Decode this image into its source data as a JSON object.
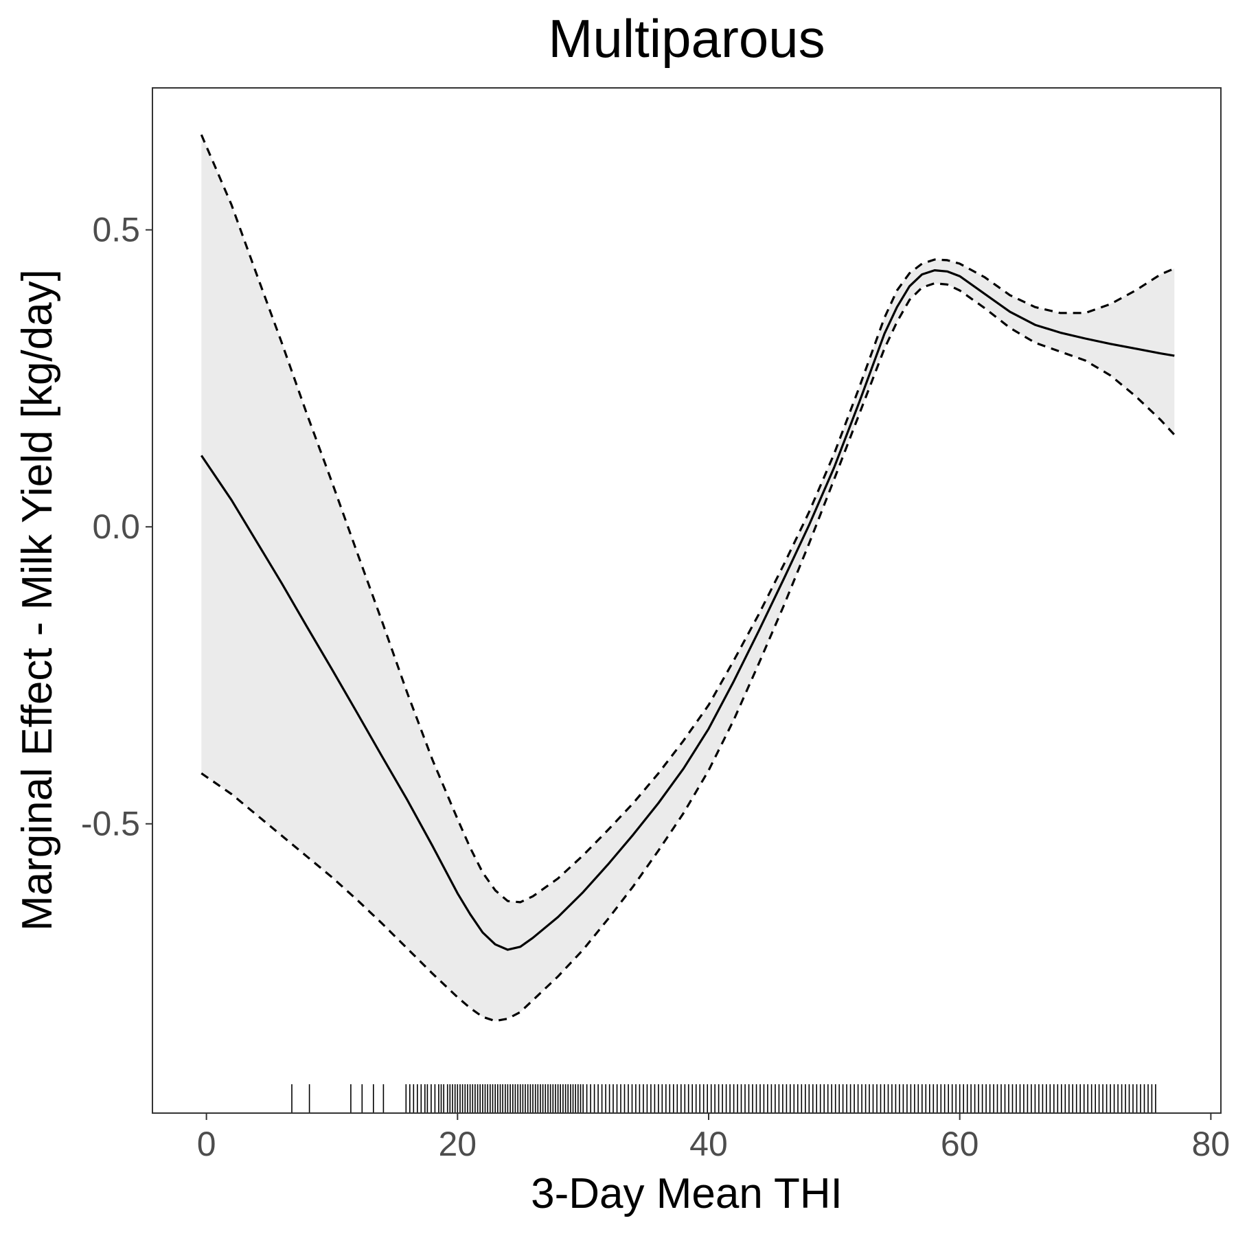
{
  "chart_data": {
    "type": "line",
    "title": "Multiparous",
    "xlabel": "3-Day Mean THI",
    "ylabel": "Marginal Effect - Milk Yield [kg/day]",
    "xlim": [
      -4.3,
      80.8
    ],
    "ylim": [
      -0.987,
      0.739
    ],
    "xticks": [
      0,
      20,
      40,
      60,
      80
    ],
    "xtick_labels": [
      "0",
      "20",
      "40",
      "60",
      "80"
    ],
    "yticks": [
      -0.5,
      0.0,
      0.5
    ],
    "ytick_labels": [
      "-0.5",
      "0.0",
      "0.5"
    ],
    "grid": false,
    "legend": "none",
    "x": [
      -0.4,
      2,
      4,
      6,
      8,
      10,
      12,
      14,
      16,
      18,
      20,
      21,
      22,
      23,
      24,
      25,
      26,
      28,
      30,
      32,
      34,
      36,
      38,
      40,
      42,
      44,
      46,
      48,
      50,
      52,
      54,
      55,
      56,
      57,
      58,
      59,
      60,
      62,
      64,
      66,
      68,
      70,
      72,
      74,
      76,
      77.1
    ],
    "series": [
      {
        "role": "estimate",
        "style": "solid",
        "values": [
          0.12,
          0.045,
          -0.025,
          -0.095,
          -0.168,
          -0.24,
          -0.313,
          -0.387,
          -0.46,
          -0.537,
          -0.617,
          -0.652,
          -0.683,
          -0.703,
          -0.712,
          -0.707,
          -0.692,
          -0.657,
          -0.615,
          -0.568,
          -0.518,
          -0.465,
          -0.407,
          -0.34,
          -0.26,
          -0.175,
          -0.087,
          0.003,
          0.1,
          0.21,
          0.325,
          0.37,
          0.405,
          0.425,
          0.432,
          0.43,
          0.422,
          0.392,
          0.362,
          0.34,
          0.327,
          0.317,
          0.308,
          0.3,
          0.292,
          0.288
        ]
      },
      {
        "role": "upper",
        "style": "dashed",
        "values": [
          0.66,
          0.542,
          0.425,
          0.31,
          0.19,
          0.075,
          -0.043,
          -0.16,
          -0.28,
          -0.392,
          -0.492,
          -0.54,
          -0.582,
          -0.612,
          -0.63,
          -0.632,
          -0.622,
          -0.592,
          -0.553,
          -0.51,
          -0.465,
          -0.415,
          -0.36,
          -0.3,
          -0.225,
          -0.147,
          -0.063,
          0.025,
          0.123,
          0.235,
          0.352,
          0.398,
          0.427,
          0.443,
          0.45,
          0.449,
          0.443,
          0.42,
          0.39,
          0.37,
          0.36,
          0.36,
          0.375,
          0.398,
          0.425,
          0.435
        ]
      },
      {
        "role": "lower",
        "style": "dashed",
        "values": [
          -0.415,
          -0.45,
          -0.485,
          -0.52,
          -0.555,
          -0.59,
          -0.628,
          -0.668,
          -0.71,
          -0.752,
          -0.792,
          -0.81,
          -0.825,
          -0.832,
          -0.828,
          -0.817,
          -0.797,
          -0.757,
          -0.712,
          -0.66,
          -0.605,
          -0.545,
          -0.482,
          -0.41,
          -0.325,
          -0.23,
          -0.132,
          -0.028,
          0.08,
          0.19,
          0.3,
          0.345,
          0.382,
          0.403,
          0.41,
          0.408,
          0.398,
          0.368,
          0.335,
          0.31,
          0.295,
          0.28,
          0.255,
          0.22,
          0.18,
          0.155
        ]
      }
    ],
    "rug": [
      6.8,
      8.2,
      11.5,
      12.4,
      13.3,
      14.1,
      15.9,
      16.2,
      16.5,
      16.8,
      17.1,
      17.4,
      17.6,
      17.9,
      18.2,
      18.5,
      18.7,
      18.9,
      19.2,
      19.4,
      19.6,
      19.8,
      20.0,
      20.2,
      20.4,
      20.6,
      20.8,
      21.0,
      21.2,
      21.4,
      21.6,
      21.8,
      22.0,
      22.2,
      22.4,
      22.6,
      22.8,
      23.0,
      23.2,
      23.4,
      23.6,
      23.8,
      24.0,
      24.2,
      24.4,
      24.6,
      24.8,
      25.0,
      25.2,
      25.4,
      25.6,
      25.8,
      26.0,
      26.2,
      26.4,
      26.6,
      26.8,
      27.0,
      27.2,
      27.4,
      27.6,
      27.8,
      28.0,
      28.2,
      28.4,
      28.6,
      28.8,
      29.0,
      29.2,
      29.4,
      29.6,
      29.8,
      30.0,
      30.3,
      30.6,
      30.9,
      31.2,
      31.5,
      31.8,
      32.1,
      32.4,
      32.7,
      33.0,
      33.3,
      33.6,
      33.9,
      34.2,
      34.5,
      34.8,
      35.1,
      35.4,
      35.7,
      36.0,
      36.3,
      36.6,
      36.9,
      37.2,
      37.5,
      37.8,
      38.1,
      38.4,
      38.7,
      39.0,
      39.3,
      39.6,
      39.9,
      40.2,
      40.5,
      40.8,
      41.1,
      41.4,
      41.7,
      42.0,
      42.3,
      42.6,
      42.9,
      43.2,
      43.5,
      43.8,
      44.1,
      44.4,
      44.7,
      45.0,
      45.3,
      45.6,
      45.9,
      46.2,
      46.5,
      46.8,
      47.1,
      47.4,
      47.7,
      48.0,
      48.3,
      48.6,
      48.9,
      49.2,
      49.5,
      49.8,
      50.1,
      50.4,
      50.7,
      51.0,
      51.3,
      51.6,
      51.9,
      52.2,
      52.5,
      52.8,
      53.1,
      53.4,
      53.7,
      54.0,
      54.3,
      54.6,
      54.9,
      55.2,
      55.5,
      55.8,
      56.1,
      56.4,
      56.7,
      57.0,
      57.3,
      57.6,
      57.9,
      58.2,
      58.5,
      58.8,
      59.1,
      59.4,
      59.7,
      60.0,
      60.3,
      60.6,
      60.9,
      61.2,
      61.5,
      61.8,
      62.1,
      62.4,
      62.7,
      63.0,
      63.3,
      63.6,
      63.9,
      64.2,
      64.5,
      64.8,
      65.1,
      65.4,
      65.7,
      66.0,
      66.3,
      66.6,
      66.9,
      67.2,
      67.5,
      67.8,
      68.1,
      68.4,
      68.7,
      69.0,
      69.3,
      69.6,
      69.9,
      70.2,
      70.5,
      70.8,
      71.1,
      71.4,
      71.7,
      72.0,
      72.3,
      72.6,
      72.9,
      73.2,
      73.5,
      73.8,
      74.1,
      74.4,
      74.7,
      75.0,
      75.3,
      75.6
    ],
    "colors": {
      "line": "#000000",
      "band": "#ebebeb",
      "tick_text": "#4d4d4d",
      "panel_border": "#333333"
    }
  }
}
